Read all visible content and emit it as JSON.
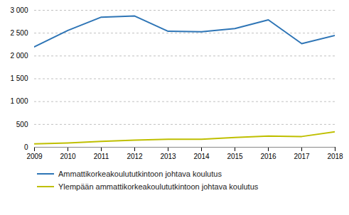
{
  "chart_data": {
    "type": "line",
    "x": [
      2009,
      2010,
      2011,
      2012,
      2013,
      2014,
      2015,
      2016,
      2017,
      2018
    ],
    "series": [
      {
        "name": "Ammattikorkeakoulututkintoon johtava koulutus",
        "color": "#2E75B6",
        "values": [
          2200,
          2560,
          2850,
          2875,
          2540,
          2530,
          2600,
          2790,
          2270,
          2450
        ]
      },
      {
        "name": "Ylempään ammattikorkeakoulututkintoon johtava koulutus",
        "color": "#BFBF00",
        "values": [
          75,
          95,
          130,
          155,
          175,
          175,
          215,
          245,
          235,
          340
        ]
      }
    ],
    "xlim": [
      2009,
      2018
    ],
    "xticks": [
      2009,
      2010,
      2011,
      2012,
      2013,
      2014,
      2015,
      2016,
      2017,
      2018
    ],
    "ylim": [
      0,
      3000
    ],
    "yticks": [
      0,
      500,
      {
        "value": 1000,
        "label": "1 000"
      },
      {
        "value": 1500,
        "label": "1 500"
      },
      {
        "value": 2000,
        "label": "2 000"
      },
      {
        "value": 2500,
        "label": "2 500"
      },
      {
        "value": 3000,
        "label": "3 000"
      }
    ],
    "grid": true,
    "legend": "bottom"
  }
}
